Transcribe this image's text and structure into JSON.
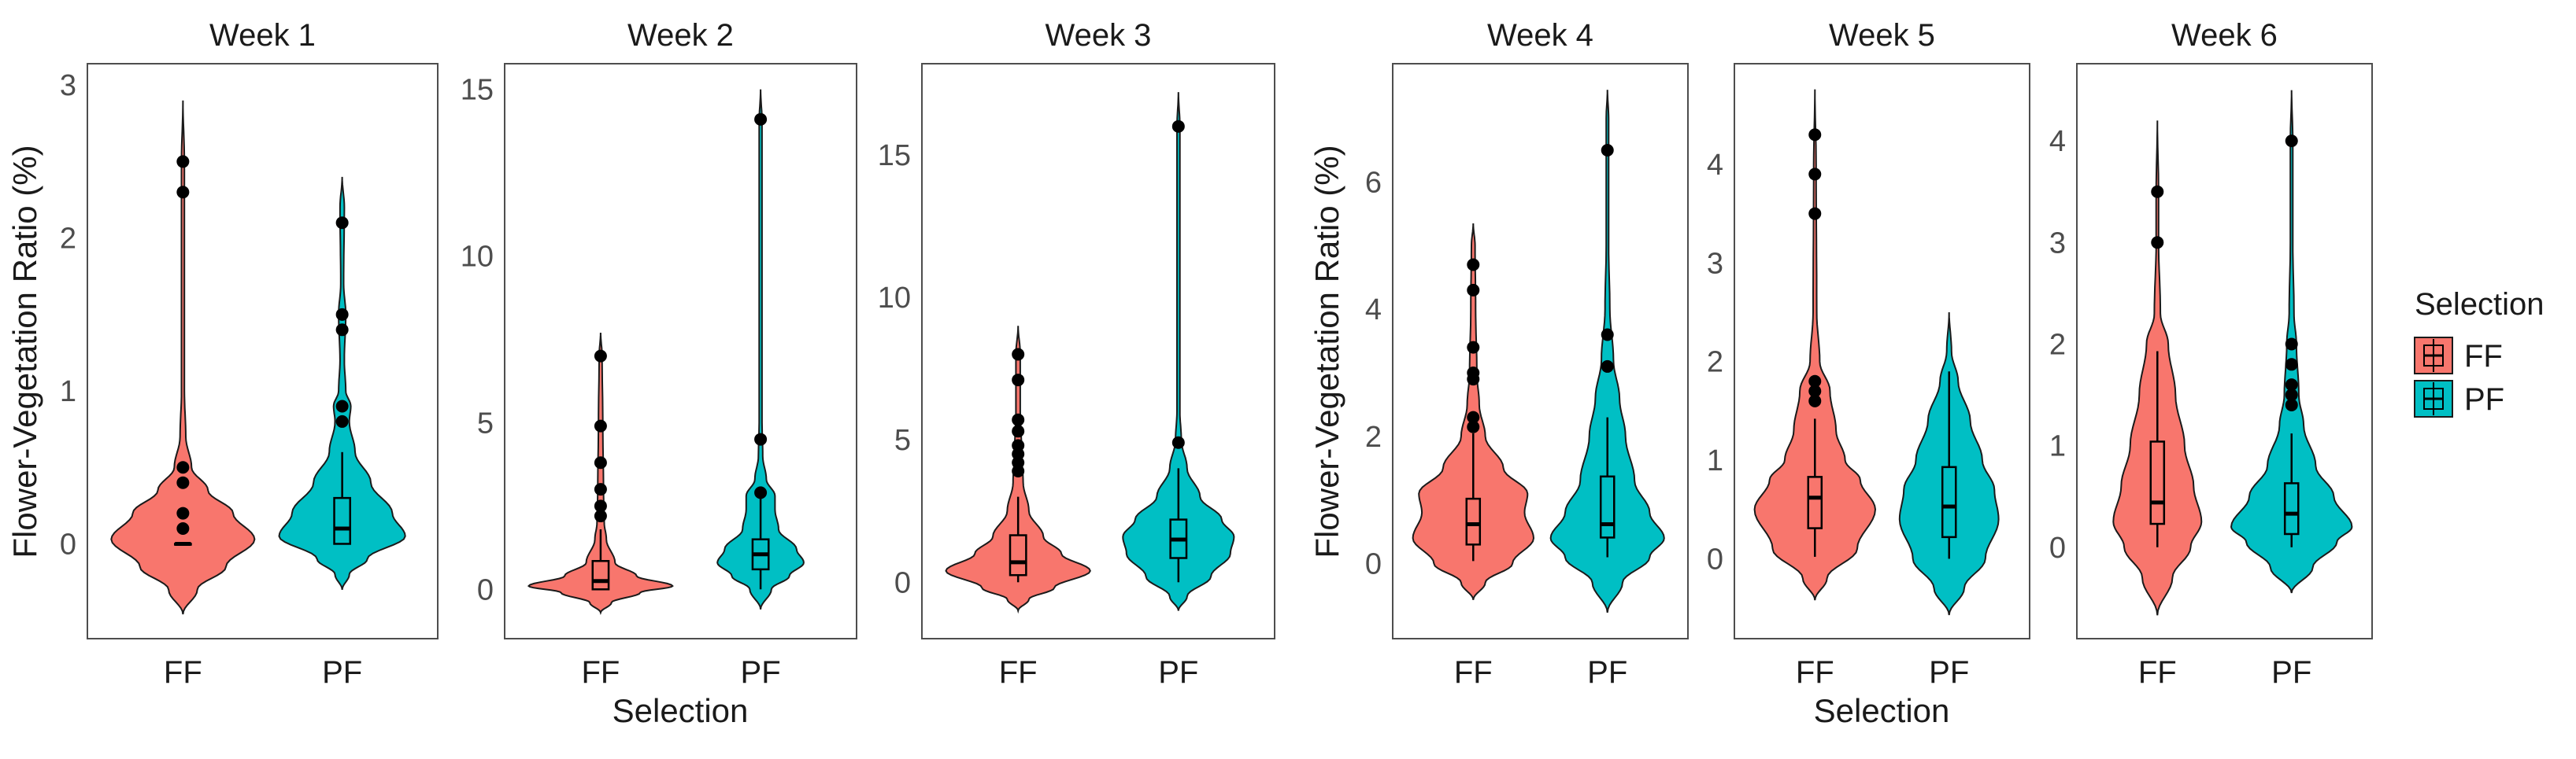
{
  "chart_data": {
    "type": "violin",
    "ylabel": "Flower-Vegetation Ratio (%)",
    "xlabel": "Selection",
    "categories": [
      "FF",
      "PF"
    ],
    "colors": {
      "FF": "#F8766D",
      "PF": "#00BFC4"
    },
    "legend": {
      "title": "Selection",
      "position": "right",
      "entries": [
        "FF",
        "PF"
      ]
    },
    "panels": [
      {
        "title": "Week 1",
        "ylim": [
          -0.62,
          3.14
        ],
        "ticks": [
          0,
          1,
          2,
          3
        ],
        "violins": [
          {
            "category": "FF",
            "profile": [
              [
                -0.46,
                0
              ],
              [
                -0.3,
                0.2
              ],
              [
                -0.15,
                0.6
              ],
              [
                0.03,
                1.0
              ],
              [
                0.2,
                0.7
              ],
              [
                0.35,
                0.35
              ],
              [
                0.5,
                0.12
              ],
              [
                0.7,
                0.04
              ],
              [
                1,
                0.02
              ],
              [
                2.5,
                0.02
              ],
              [
                2.9,
                0
              ]
            ],
            "box": {
              "low": 0,
              "q1": 0,
              "median": 0,
              "q3": 0,
              "high": 0
            },
            "outliers": [
              0.1,
              0.2,
              0.4,
              0.5,
              2.3,
              2.5
            ]
          },
          {
            "category": "PF",
            "profile": [
              [
                -0.3,
                0
              ],
              [
                -0.2,
                0.1
              ],
              [
                -0.1,
                0.35
              ],
              [
                0.05,
                0.88
              ],
              [
                0.2,
                0.7
              ],
              [
                0.4,
                0.4
              ],
              [
                0.6,
                0.18
              ],
              [
                0.8,
                0.1
              ],
              [
                0.9,
                0.12
              ],
              [
                1.0,
                0.05
              ],
              [
                1.2,
                0.03
              ],
              [
                1.5,
                0.05
              ],
              [
                1.7,
                0.02
              ],
              [
                2.2,
                0.03
              ],
              [
                2.4,
                0
              ]
            ],
            "box": {
              "low": 0,
              "q1": 0,
              "median": 0.1,
              "q3": 0.3,
              "high": 0.6
            },
            "outliers": [
              0.8,
              0.9,
              1.4,
              1.5,
              2.1
            ]
          }
        ]
      },
      {
        "title": "Week 2",
        "ylim": [
          -1.48,
          15.77
        ],
        "ticks": [
          0,
          5,
          10,
          15
        ],
        "violins": [
          {
            "category": "FF",
            "profile": [
              [
                -0.7,
                0
              ],
              [
                -0.4,
                0.15
              ],
              [
                -0.1,
                0.55
              ],
              [
                0.1,
                1.0
              ],
              [
                0.4,
                0.5
              ],
              [
                0.8,
                0.2
              ],
              [
                1.5,
                0.08
              ],
              [
                2,
                0.05
              ],
              [
                3,
                0.04
              ],
              [
                5,
                0.03
              ],
              [
                7,
                0.02
              ],
              [
                7.7,
                0
              ]
            ],
            "box": {
              "low": 0,
              "q1": 0,
              "median": 0.25,
              "q3": 0.85,
              "high": 1.8
            },
            "outliers": [
              2.2,
              2.5,
              3,
              3.8,
              4.9,
              7
            ]
          },
          {
            "category": "PF",
            "profile": [
              [
                -0.6,
                0
              ],
              [
                0,
                0.15
              ],
              [
                0.4,
                0.4
              ],
              [
                0.8,
                0.6
              ],
              [
                1.2,
                0.5
              ],
              [
                1.8,
                0.25
              ],
              [
                2.4,
                0.2
              ],
              [
                2.8,
                0.2
              ],
              [
                3.3,
                0.08
              ],
              [
                4,
                0.03
              ],
              [
                5,
                0.02
              ],
              [
                14,
                0.02
              ],
              [
                15,
                0
              ]
            ],
            "box": {
              "low": 0,
              "q1": 0.6,
              "median": 1.05,
              "q3": 1.5,
              "high": 2.8
            },
            "outliers": [
              2.9,
              4.5,
              14.1
            ]
          }
        ]
      },
      {
        "title": "Week 3",
        "ylim": [
          -1.98,
          18.2
        ],
        "ticks": [
          0,
          5,
          10,
          15
        ],
        "violins": [
          {
            "category": "FF",
            "profile": [
              [
                -1.0,
                0
              ],
              [
                -0.6,
                0.15
              ],
              [
                -0.2,
                0.5
              ],
              [
                0.4,
                1.0
              ],
              [
                1,
                0.6
              ],
              [
                1.6,
                0.35
              ],
              [
                2.5,
                0.15
              ],
              [
                3.5,
                0.07
              ],
              [
                4.5,
                0.05
              ],
              [
                6,
                0.03
              ],
              [
                8,
                0.03
              ],
              [
                9,
                0
              ]
            ],
            "box": {
              "low": 0,
              "q1": 0.25,
              "median": 0.7,
              "q3": 1.65,
              "high": 3.0
            },
            "outliers": [
              3.9,
              4.2,
              4.5,
              4.8,
              5.3,
              5.7,
              7.1,
              8.0
            ]
          },
          {
            "category": "PF",
            "profile": [
              [
                -1,
                0
              ],
              [
                -0.5,
                0.12
              ],
              [
                0.2,
                0.45
              ],
              [
                1.0,
                0.72
              ],
              [
                1.6,
                0.77
              ],
              [
                2.2,
                0.6
              ],
              [
                3,
                0.3
              ],
              [
                4,
                0.12
              ],
              [
                5,
                0.04
              ],
              [
                6,
                0.02
              ],
              [
                16,
                0.02
              ],
              [
                17.2,
                0
              ]
            ],
            "box": {
              "low": 0,
              "q1": 0.85,
              "median": 1.5,
              "q3": 2.2,
              "high": 4.0
            },
            "outliers": [
              4.9,
              16
            ]
          }
        ]
      },
      {
        "title": "Week 4",
        "ylim": [
          -1.18,
          7.86
        ],
        "ticks": [
          0,
          2,
          4,
          6
        ],
        "violins": [
          {
            "category": "FF",
            "profile": [
              [
                -0.57,
                0
              ],
              [
                -0.3,
                0.2
              ],
              [
                0,
                0.65
              ],
              [
                0.4,
                1.0
              ],
              [
                0.8,
                0.85
              ],
              [
                1.1,
                0.9
              ],
              [
                1.5,
                0.5
              ],
              [
                2,
                0.2
              ],
              [
                2.5,
                0.1
              ],
              [
                3,
                0.06
              ],
              [
                4,
                0.04
              ],
              [
                5,
                0.03
              ],
              [
                5.35,
                0
              ]
            ],
            "box": {
              "low": 0.04,
              "q1": 0.3,
              "median": 0.62,
              "q3": 1.02,
              "high": 2.05
            },
            "outliers": [
              2.15,
              2.3,
              2.9,
              3.0,
              3.4,
              4.3,
              4.7
            ]
          },
          {
            "category": "PF",
            "profile": [
              [
                -0.77,
                0
              ],
              [
                -0.3,
                0.25
              ],
              [
                0.1,
                0.7
              ],
              [
                0.4,
                0.94
              ],
              [
                0.8,
                0.7
              ],
              [
                1.3,
                0.45
              ],
              [
                2,
                0.3
              ],
              [
                2.6,
                0.2
              ],
              [
                3.2,
                0.1
              ],
              [
                4,
                0.04
              ],
              [
                5,
                0.02
              ],
              [
                7,
                0.02
              ],
              [
                7.45,
                0
              ]
            ],
            "box": {
              "low": 0.1,
              "q1": 0.41,
              "median": 0.62,
              "q3": 1.37,
              "high": 2.3
            },
            "outliers": [
              3.1,
              3.6,
              6.5
            ]
          }
        ]
      },
      {
        "title": "Week 5",
        "ylim": [
          -0.81,
          5.02
        ],
        "ticks": [
          0,
          1,
          2,
          3,
          4
        ],
        "violins": [
          {
            "category": "FF",
            "profile": [
              [
                -0.42,
                0
              ],
              [
                -0.2,
                0.2
              ],
              [
                0.1,
                0.7
              ],
              [
                0.5,
                1.0
              ],
              [
                0.8,
                0.75
              ],
              [
                1.0,
                0.5
              ],
              [
                1.3,
                0.35
              ],
              [
                1.7,
                0.25
              ],
              [
                2,
                0.08
              ],
              [
                2.5,
                0.03
              ],
              [
                4,
                0.02
              ],
              [
                4.76,
                0
              ]
            ],
            "box": {
              "low": 0.02,
              "q1": 0.31,
              "median": 0.62,
              "q3": 0.83,
              "high": 1.42
            },
            "outliers": [
              1.6,
              1.7,
              1.8,
              3.5,
              3.9,
              4.3
            ]
          },
          {
            "category": "PF",
            "profile": [
              [
                -0.57,
                0
              ],
              [
                -0.3,
                0.25
              ],
              [
                0,
                0.6
              ],
              [
                0.4,
                0.82
              ],
              [
                0.7,
                0.75
              ],
              [
                1.0,
                0.55
              ],
              [
                1.4,
                0.35
              ],
              [
                1.8,
                0.15
              ],
              [
                2.1,
                0.04
              ],
              [
                2.5,
                0
              ]
            ],
            "box": {
              "low": 0,
              "q1": 0.22,
              "median": 0.53,
              "q3": 0.93,
              "high": 1.9
            },
            "outliers": []
          }
        ]
      },
      {
        "title": "Week 6",
        "ylim": [
          -0.9,
          4.76
        ],
        "ticks": [
          0,
          1,
          2,
          3,
          4
        ],
        "violins": [
          {
            "category": "FF",
            "profile": [
              [
                -0.67,
                0
              ],
              [
                -0.3,
                0.25
              ],
              [
                0,
                0.55
              ],
              [
                0.25,
                0.73
              ],
              [
                0.6,
                0.6
              ],
              [
                1,
                0.45
              ],
              [
                1.5,
                0.3
              ],
              [
                2,
                0.18
              ],
              [
                2.3,
                0.05
              ],
              [
                3,
                0.02
              ],
              [
                3.5,
                0.02
              ],
              [
                4.2,
                0
              ]
            ],
            "box": {
              "low": 0,
              "q1": 0.23,
              "median": 0.44,
              "q3": 1.04,
              "high": 1.93
            },
            "outliers": [
              3.0,
              3.5
            ]
          },
          {
            "category": "PF",
            "profile": [
              [
                -0.45,
                0
              ],
              [
                -0.2,
                0.35
              ],
              [
                0.05,
                0.75
              ],
              [
                0.2,
                1.0
              ],
              [
                0.5,
                0.7
              ],
              [
                0.8,
                0.4
              ],
              [
                1.2,
                0.2
              ],
              [
                1.5,
                0.12
              ],
              [
                2,
                0.08
              ],
              [
                2.3,
                0.04
              ],
              [
                3,
                0.02
              ],
              [
                4,
                0.02
              ],
              [
                4.5,
                0
              ]
            ],
            "box": {
              "low": 0,
              "q1": 0.13,
              "median": 0.33,
              "q3": 0.63,
              "high": 1.12
            },
            "outliers": [
              1.4,
              1.5,
              1.6,
              1.8,
              2.0,
              4.0
            ]
          }
        ]
      }
    ]
  }
}
